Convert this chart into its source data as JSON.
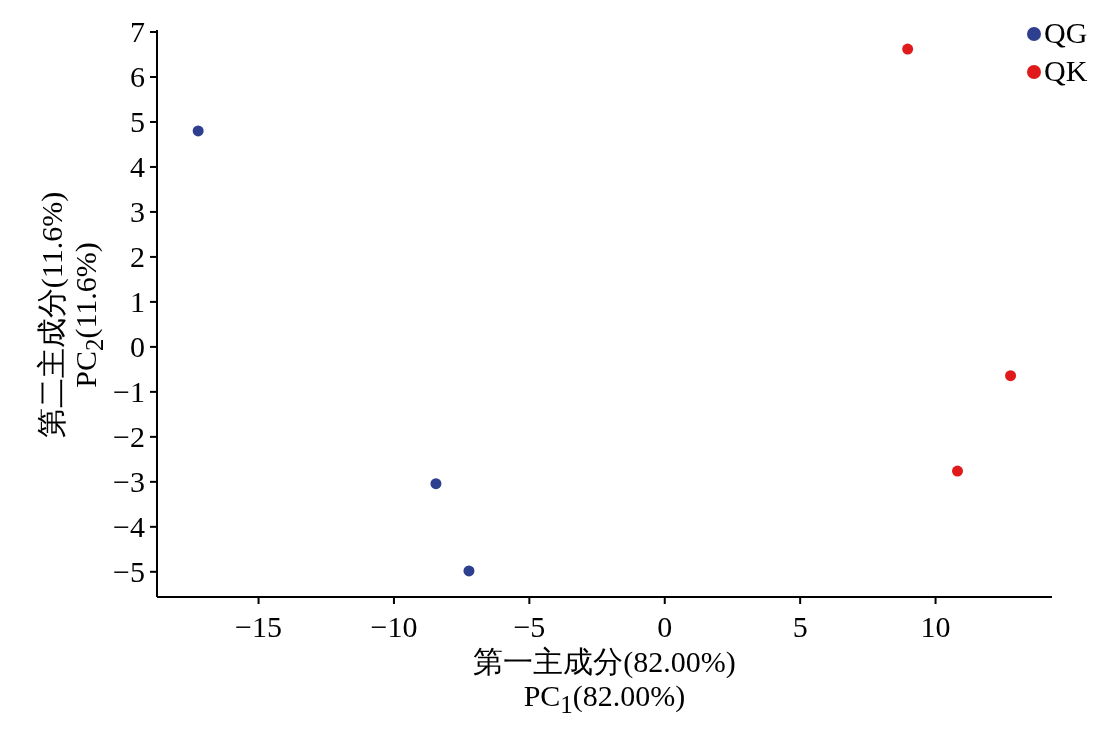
{
  "chart_data": {
    "type": "scatter",
    "xlabel": "第一主成分(82.00%)\nPC$_{1}$(82.00%)",
    "ylabel": "第二主成分(11.6%)\nPC$_{2}$(11.6%)",
    "xlim": [
      -18.75,
      14.3
    ],
    "ylim": [
      -5.56,
      7
    ],
    "xticks": [
      -15,
      -10,
      -5,
      0,
      5,
      10
    ],
    "yticks": [
      -5,
      -4,
      -3,
      -2,
      -1,
      0,
      1,
      2,
      3,
      4,
      5,
      6,
      7
    ],
    "marker": "circle",
    "legend": "top right",
    "series": [
      {
        "name": "QG",
        "color": "#2e3f8f",
        "x": [
          -17.23,
          -8.45,
          -7.23
        ],
        "values": [
          4.8,
          -3.04,
          -4.98
        ]
      },
      {
        "name": "QK",
        "color": "#e01a1a",
        "x": [
          8.97,
          12.77,
          10.81
        ],
        "values": [
          6.62,
          -0.64,
          -2.76
        ]
      }
    ]
  }
}
